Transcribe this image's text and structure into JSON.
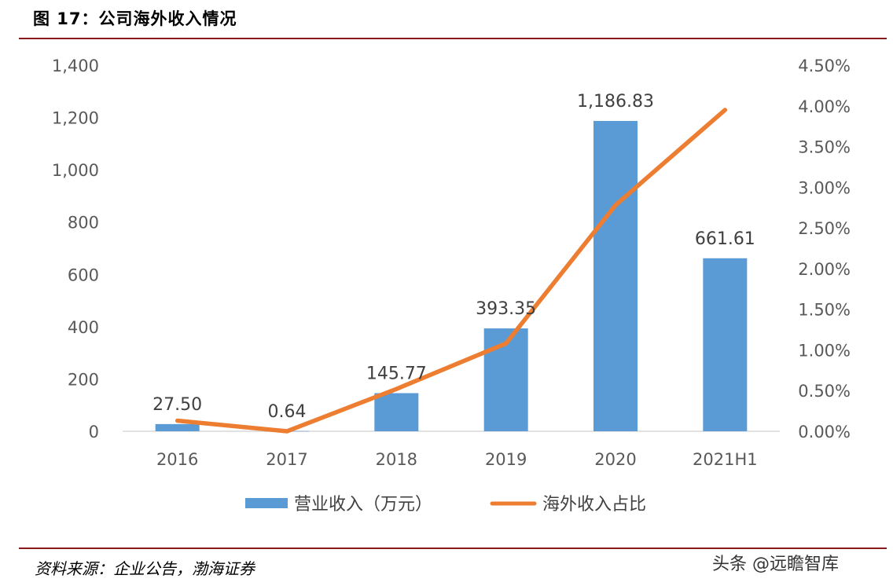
{
  "figure": {
    "title": "图 17：公司海外收入情况",
    "source": "资料来源：企业公告，渤海证券",
    "watermark": "头条 @远瞻智库"
  },
  "colors": {
    "bar": "#5b9bd5",
    "line": "#ed7d31",
    "rule": "#8b1a1a",
    "axis_text": "#595959",
    "baseline": "#d9d9d9"
  },
  "chart_data": {
    "type": "bar",
    "title": "",
    "xlabel": "",
    "ylabel": "",
    "categories": [
      "2016",
      "2017",
      "2018",
      "2019",
      "2020",
      "2021H1"
    ],
    "ylim": [
      0,
      1400
    ],
    "y_ticks": [
      0,
      200,
      400,
      600,
      800,
      1000,
      1200,
      1400
    ],
    "y_tick_labels": [
      "0",
      "200",
      "400",
      "600",
      "800",
      "1,000",
      "1,200",
      "1,400"
    ],
    "y2lim": [
      0,
      0.045
    ],
    "y2_ticks": [
      0,
      0.005,
      0.01,
      0.015,
      0.02,
      0.025,
      0.03,
      0.035,
      0.04,
      0.045
    ],
    "y2_tick_labels": [
      "0.00%",
      "0.50%",
      "1.00%",
      "1.50%",
      "2.00%",
      "2.50%",
      "3.00%",
      "3.50%",
      "4.00%",
      "4.50%"
    ],
    "grid": false,
    "legend_position": "bottom",
    "series": [
      {
        "name": "营业收入（万元）",
        "type": "bar",
        "axis": "left",
        "values": [
          27.5,
          0.64,
          145.77,
          393.35,
          1186.83,
          661.61
        ],
        "data_labels": [
          "27.50",
          "0.64",
          "145.77",
          "393.35",
          "1,186.83",
          "661.61"
        ]
      },
      {
        "name": "海外收入占比",
        "type": "line",
        "axis": "right",
        "values": [
          0.0013,
          0.0,
          0.0052,
          0.0108,
          0.0278,
          0.0395
        ]
      }
    ]
  }
}
